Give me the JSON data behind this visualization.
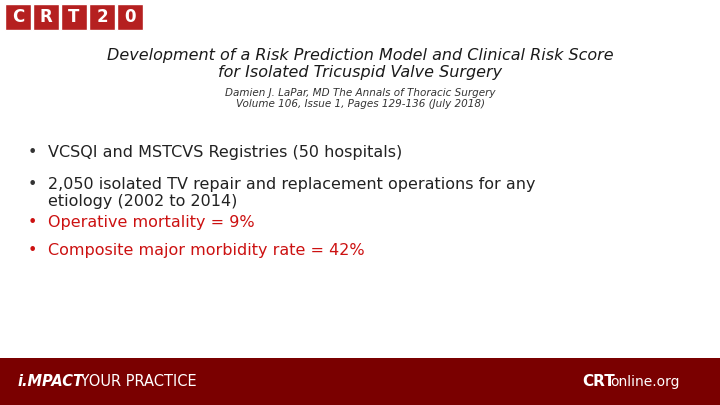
{
  "title_line1": "Development of a Risk Prediction Model and Clinical Risk Score",
  "title_line2": "for Isolated Tricuspid Valve Surgery",
  "subtitle_line1": "Damien J. LaPar, MD The Annals of Thoracic Surgery",
  "subtitle_line2": "Volume 106, Issue 1, Pages 129-136 (July 2018)",
  "bullet1_text": "VCSQI and MSTCVS Registries (50 hospitals)",
  "bullet1_color": "#222222",
  "bullet2_line1": "2,050 isolated TV repair and replacement operations for any",
  "bullet2_line2": "etiology (2002 to 2014)",
  "bullet2_color": "#222222",
  "bullet3_text": "Operative mortality = 9%",
  "bullet3_color": "#cc1111",
  "bullet4_text": "Composite major morbidity rate = 42%",
  "bullet4_color": "#cc1111",
  "footer_bg": "#7a0000",
  "footer_text_left_italic_bold": "i.MPACT",
  "footer_text_left_rest": " YOUR PRACTICE",
  "logo_letters": [
    "C",
    "R",
    "T",
    "2",
    "0"
  ],
  "logo_cell_color": "#b52020",
  "bg_color": "#ffffff",
  "title_color": "#1a1a1a",
  "subtitle_color": "#333333"
}
